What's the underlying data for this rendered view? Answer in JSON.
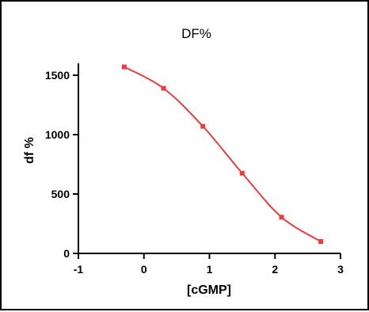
{
  "chart_data": {
    "type": "scatter",
    "title": "DF%",
    "xlabel": "[cGMP]",
    "ylabel": "df %",
    "xlim": [
      -1,
      3
    ],
    "ylim": [
      0,
      1600
    ],
    "x_ticks": [
      -1,
      0,
      1,
      2,
      3
    ],
    "y_ticks": [
      0,
      500,
      1000,
      1500
    ],
    "grid": false,
    "colors": {
      "series": "#ee3b3b",
      "axis": "#000000"
    },
    "series": [
      {
        "x": [
          -0.3,
          0.3,
          0.9,
          1.5,
          2.1,
          2.7
        ],
        "y": [
          1570,
          1390,
          1070,
          675,
          305,
          100
        ],
        "fit": "sigmoidal-curve"
      }
    ]
  }
}
